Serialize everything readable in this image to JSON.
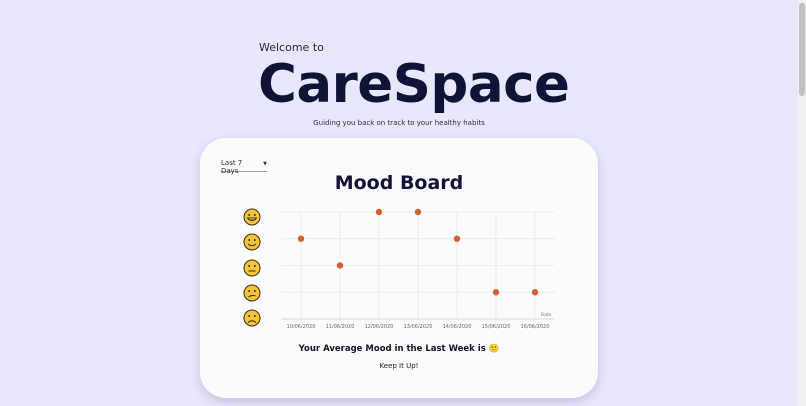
{
  "header": {
    "welcome": "Welcome to",
    "brand": "CareSpace",
    "tagline": "Guiding you back on track to your healthy habits"
  },
  "mood_board": {
    "range_label": "Last 7 Days",
    "title": "Mood Board",
    "average_text": "Your Average Mood in the Last Week is",
    "average_emoji": "🙂",
    "encouragement": "Keep It Up!"
  },
  "colors": {
    "background": "#e6e8fe",
    "card": "#fbfbfd",
    "point": "#d2612e",
    "emoji_face": "#f6c43a",
    "grid": "#e7e7ec"
  },
  "chart_data": {
    "type": "scatter",
    "title": "Mood Board",
    "xlabel": "Date",
    "ylabel": "",
    "y_levels": [
      {
        "level": 5,
        "icon": "grinning-face-icon"
      },
      {
        "level": 4,
        "icon": "smiling-face-icon"
      },
      {
        "level": 3,
        "icon": "neutral-face-icon"
      },
      {
        "level": 2,
        "icon": "confused-face-icon"
      },
      {
        "level": 1,
        "icon": "frowning-face-icon"
      }
    ],
    "ylim": [
      1,
      5
    ],
    "categories": [
      "10/06/2020",
      "11/06/2020",
      "12/06/2020",
      "13/06/2020",
      "14/06/2020",
      "15/06/2020",
      "16/06/2020"
    ],
    "values": [
      4,
      3,
      5,
      5,
      4,
      2,
      2
    ],
    "grid": true
  }
}
